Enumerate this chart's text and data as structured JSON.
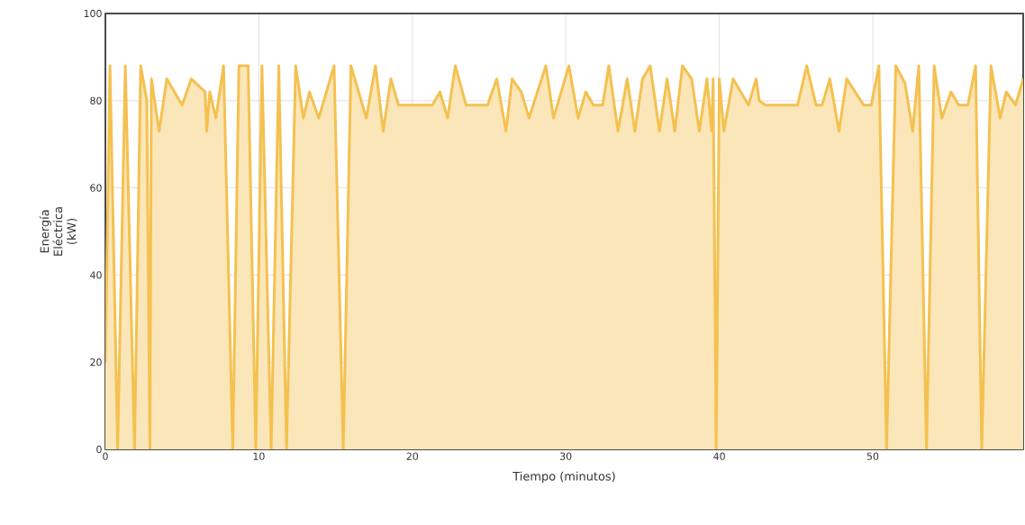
{
  "chart_data": {
    "type": "area",
    "xlabel": "Tiempo (minutos)",
    "ylabel": "Energía Eléctrica (kW)",
    "xlim": [
      0,
      59.8
    ],
    "ylim": [
      0,
      100
    ],
    "xticks": [
      0,
      10,
      20,
      30,
      40,
      50
    ],
    "yticks": [
      0,
      20,
      40,
      60,
      80,
      100
    ],
    "grid": true,
    "line_style": "solid",
    "marker": "none",
    "series": [
      {
        "color": "#f4c150",
        "x": [
          0,
          0.3,
          0.8,
          1.3,
          1.9,
          2.3,
          2.7,
          2.9,
          3.0,
          3.5,
          4.0,
          5.0,
          5.6,
          6.5,
          6.6,
          6.8,
          7.2,
          7.7,
          8.3,
          8.7,
          9.3,
          9.8,
          10.2,
          10.8,
          11.3,
          11.8,
          12.4,
          12.9,
          13.3,
          13.9,
          14.9,
          15.5,
          16.0,
          17.0,
          17.6,
          18.1,
          18.6,
          19.1,
          21.3,
          21.8,
          22.3,
          22.8,
          23.5,
          24.9,
          25.5,
          26.1,
          26.5,
          27.1,
          27.6,
          28.7,
          29.2,
          30.2,
          30.8,
          31.3,
          31.8,
          32.4,
          32.8,
          33.4,
          34.0,
          34.5,
          35.0,
          35.5,
          36.1,
          36.6,
          37.1,
          37.6,
          38.2,
          38.7,
          39.2,
          39.5,
          39.6,
          39.8,
          40.0,
          40.3,
          40.9,
          41.9,
          42.4,
          42.6,
          43.0,
          45.1,
          45.7,
          46.3,
          46.7,
          47.2,
          47.8,
          48.3,
          49.4,
          49.9,
          50.4,
          50.9,
          51.5,
          52.1,
          52.6,
          53.0,
          53.5,
          54.0,
          54.5,
          55.1,
          55.6,
          56.2,
          56.7,
          57.1,
          57.7,
          58.3,
          58.7,
          59.3,
          59.8
        ],
        "values": [
          20,
          88,
          0,
          88,
          0,
          88,
          80,
          0,
          85,
          73,
          85,
          79,
          85,
          82,
          73,
          82,
          76,
          88,
          0,
          88,
          88,
          0,
          88,
          0,
          88,
          0,
          88,
          76,
          82,
          76,
          88,
          0,
          88,
          76,
          88,
          73,
          85,
          79,
          79,
          82,
          76,
          88,
          79,
          79,
          85,
          73,
          85,
          82,
          76,
          88,
          76,
          88,
          76,
          82,
          79,
          79,
          88,
          73,
          85,
          73,
          85,
          88,
          73,
          85,
          73,
          88,
          85,
          73,
          85,
          73,
          85,
          0,
          85,
          73,
          85,
          79,
          85,
          80,
          79,
          79,
          88,
          79,
          79,
          85,
          73,
          85,
          79,
          79,
          88,
          0,
          88,
          84,
          73,
          88,
          0,
          88,
          76,
          82,
          79,
          79,
          88,
          0,
          88,
          76,
          82,
          79,
          85
        ]
      }
    ]
  }
}
